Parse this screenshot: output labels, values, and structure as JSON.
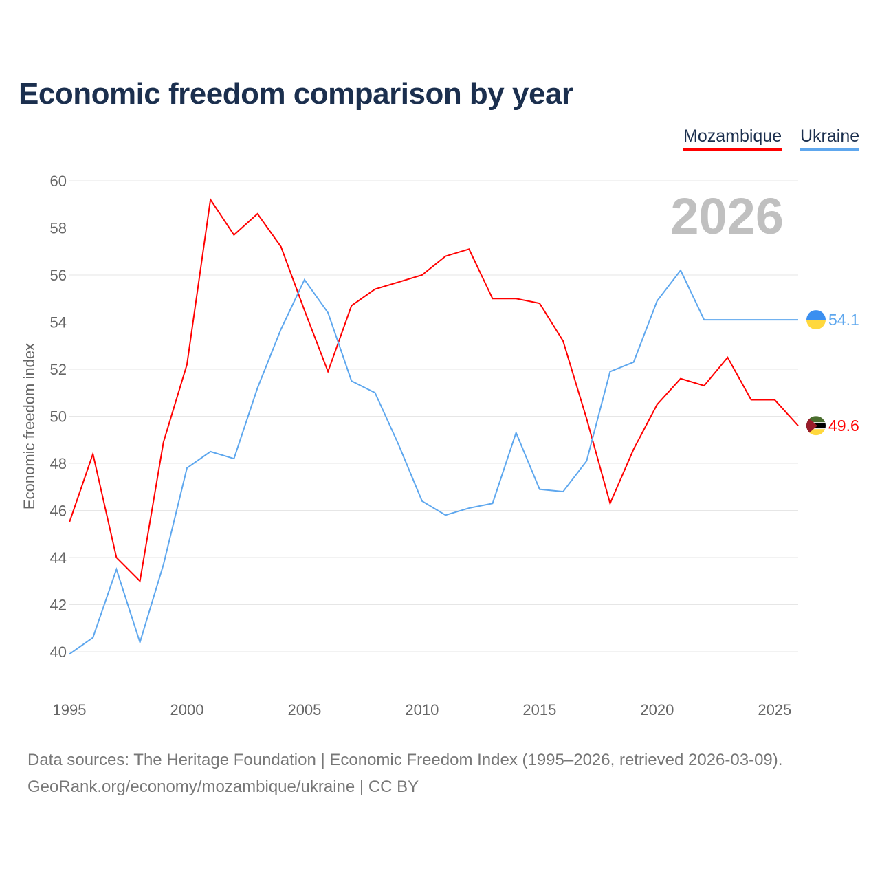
{
  "title": "Economic freedom comparison by year",
  "footer": {
    "line1": "Data sources: The Heritage Foundation | Economic Freedom Index (1995–2026, retrieved 2026-03-09).",
    "line2": "GeoRank.org/economy/mozambique/ukraine | CC BY"
  },
  "chart_data": {
    "type": "line",
    "title": "Economic freedom comparison by year",
    "xlabel": "",
    "ylabel": "Economic freedom index",
    "year_watermark": "2026",
    "xlim": [
      1995,
      2026
    ],
    "ylim": [
      40,
      60
    ],
    "xticks": [
      1995,
      2000,
      2005,
      2010,
      2015,
      2020,
      2025
    ],
    "yticks": [
      40,
      42,
      44,
      46,
      48,
      50,
      52,
      54,
      56,
      58,
      60
    ],
    "grid": true,
    "legend_position": "top-right",
    "x": [
      1995,
      1996,
      1997,
      1998,
      1999,
      2000,
      2001,
      2002,
      2003,
      2004,
      2005,
      2006,
      2007,
      2008,
      2009,
      2010,
      2011,
      2012,
      2013,
      2014,
      2015,
      2016,
      2017,
      2018,
      2019,
      2020,
      2021,
      2022,
      2023,
      2024,
      2025,
      2026
    ],
    "series": [
      {
        "name": "Mozambique",
        "color": "#ff0000",
        "end_label": "49.6",
        "values": [
          45.5,
          48.4,
          44.0,
          43.0,
          48.9,
          52.2,
          59.2,
          57.7,
          58.6,
          57.2,
          54.5,
          51.9,
          54.7,
          55.4,
          55.7,
          56.0,
          56.8,
          57.1,
          55.0,
          55.0,
          54.8,
          53.2,
          49.9,
          46.3,
          48.6,
          50.5,
          51.6,
          51.3,
          52.5,
          50.7,
          50.7,
          49.6
        ]
      },
      {
        "name": "Ukraine",
        "color": "#5ea7ee",
        "end_label": "54.1",
        "values": [
          39.9,
          40.6,
          43.5,
          40.4,
          43.7,
          47.8,
          48.5,
          48.2,
          51.2,
          53.7,
          55.8,
          54.4,
          51.5,
          51.0,
          48.8,
          46.4,
          45.8,
          46.1,
          46.3,
          49.3,
          46.9,
          46.8,
          48.1,
          51.9,
          52.3,
          54.9,
          56.2,
          54.1,
          54.1,
          54.1,
          54.1,
          54.1
        ]
      }
    ]
  }
}
